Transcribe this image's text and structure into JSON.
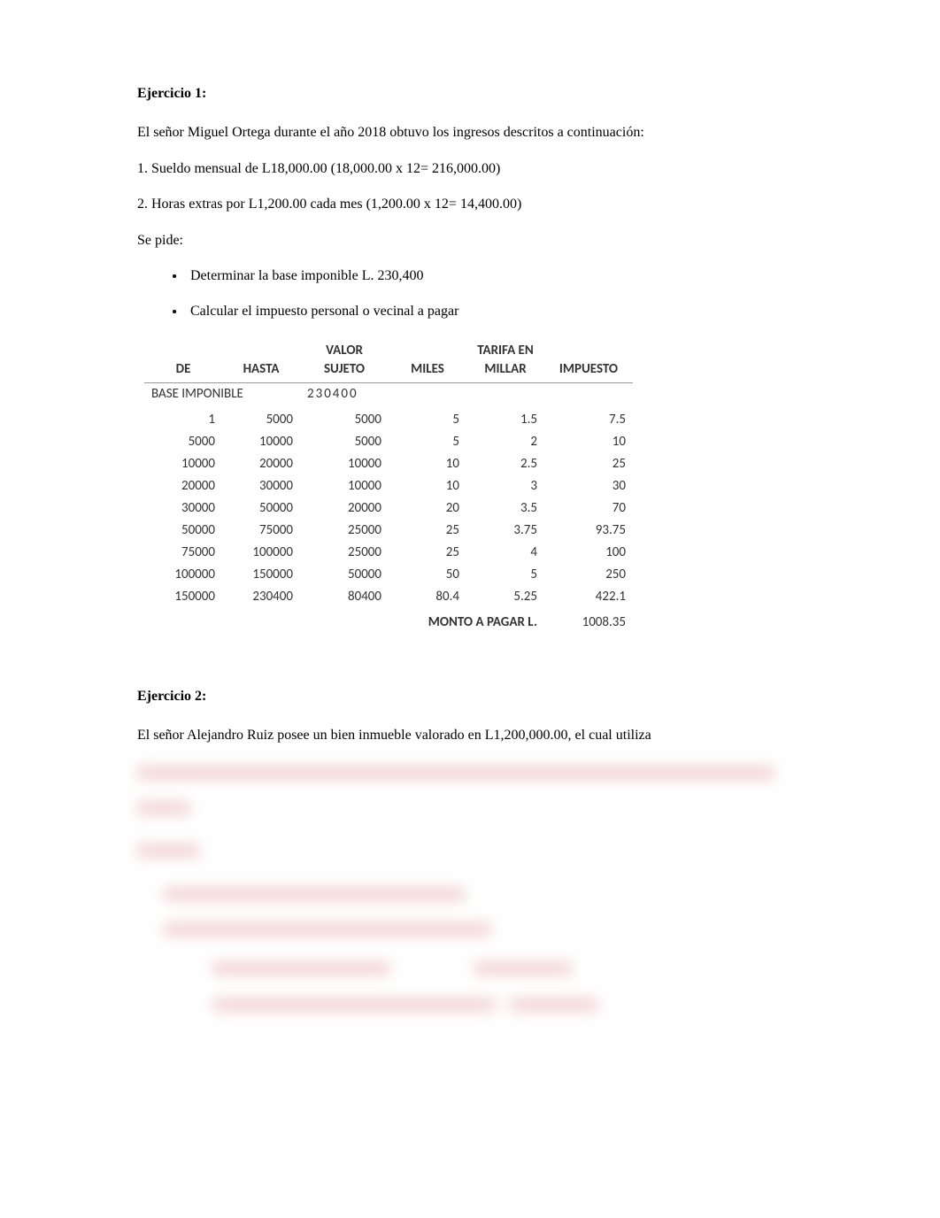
{
  "exercise1": {
    "title": "Ejercicio 1:",
    "intro": "El señor Miguel Ortega durante el año 2018 obtuvo los ingresos descritos a continuación:",
    "item1": "1. Sueldo mensual de L18,000.00 (18,000.00 x 12= 216,000.00)",
    "item2": "2. Horas extras por L1,200.00 cada mes (1,200.00 x 12= 14,400.00)",
    "sepide": "Se pide:",
    "bullet1": "Determinar la base imponible  L. 230,400",
    "bullet2": "Calcular el impuesto personal o vecinal a pagar"
  },
  "table": {
    "base_label": "BASE IMPONIBLE",
    "base_value": "230400",
    "headers": {
      "de": "DE",
      "hasta": "HASTA",
      "valor": "VALOR SUJETO",
      "miles": "MILES",
      "tarifa": "TARIFA EN MILLAR",
      "impuesto": "IMPUESTO"
    },
    "rows": [
      {
        "de": "1",
        "hasta": "5000",
        "valor": "5000",
        "miles": "5",
        "tarifa": "1.5",
        "imp": "7.5"
      },
      {
        "de": "5000",
        "hasta": "10000",
        "valor": "5000",
        "miles": "5",
        "tarifa": "2",
        "imp": "10"
      },
      {
        "de": "10000",
        "hasta": "20000",
        "valor": "10000",
        "miles": "10",
        "tarifa": "2.5",
        "imp": "25"
      },
      {
        "de": "20000",
        "hasta": "30000",
        "valor": "10000",
        "miles": "10",
        "tarifa": "3",
        "imp": "30"
      },
      {
        "de": "30000",
        "hasta": "50000",
        "valor": "20000",
        "miles": "20",
        "tarifa": "3.5",
        "imp": "70"
      },
      {
        "de": "50000",
        "hasta": "75000",
        "valor": "25000",
        "miles": "25",
        "tarifa": "3.75",
        "imp": "93.75"
      },
      {
        "de": "75000",
        "hasta": "100000",
        "valor": "25000",
        "miles": "25",
        "tarifa": "4",
        "imp": "100"
      },
      {
        "de": "100000",
        "hasta": "150000",
        "valor": "50000",
        "miles": "50",
        "tarifa": "5",
        "imp": "250"
      },
      {
        "de": "150000",
        "hasta": "230400",
        "valor": "80400",
        "miles": "80.4",
        "tarifa": "5.25",
        "imp": "422.1"
      }
    ],
    "total_label": "MONTO A PAGAR L.",
    "total_value": "1008.35",
    "border_color": "#999999",
    "text_color": "#333333"
  },
  "exercise2": {
    "title": "Ejercicio 2:",
    "intro": "El señor Alejandro Ruiz posee un bien inmueble valorado en L1,200,000.00, el cual utiliza"
  }
}
